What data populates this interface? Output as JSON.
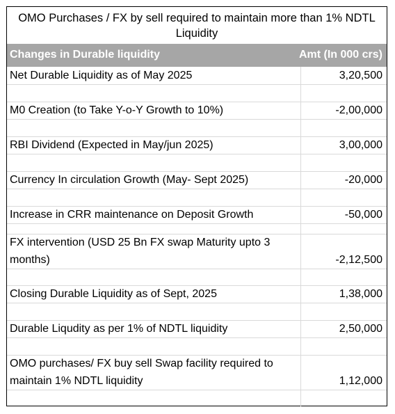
{
  "title": "OMO Purchases / FX by sell required to maintain more than 1% NDTL Liquidity",
  "header": {
    "col1": "Changes in Durable liquidity",
    "col2": "Amt (In 000 crs)"
  },
  "rows": [
    {
      "label": "Net Durable Liquidity as of May 2025",
      "amount": "3,20,500"
    },
    {
      "label": "M0 Creation (to Take Y-o-Y Growth to 10%)",
      "amount": "-2,00,000"
    },
    {
      "label": "RBI Dividend (Expected in May/jun 2025)",
      "amount": "3,00,000"
    },
    {
      "label": "Currency In circulation Growth (May- Sept 2025)",
      "amount": "-20,000"
    },
    {
      "label": "Increase in CRR maintenance on Deposit Growth",
      "amount": "-50,000"
    },
    {
      "label": "FX intervention (USD 25 Bn FX swap Maturity upto 3 months)",
      "amount": "-2,12,500"
    },
    {
      "label": "Closing Durable Liquidity as of Sept, 2025",
      "amount": "1,38,000"
    },
    {
      "label": "Durable Liqudity as per 1% of NDTL liquidity",
      "amount": "2,50,000"
    },
    {
      "label": "OMO purchases/ FX buy sell Swap facility required to maintain 1% NDTL liquidity",
      "amount": "1,12,000"
    }
  ]
}
